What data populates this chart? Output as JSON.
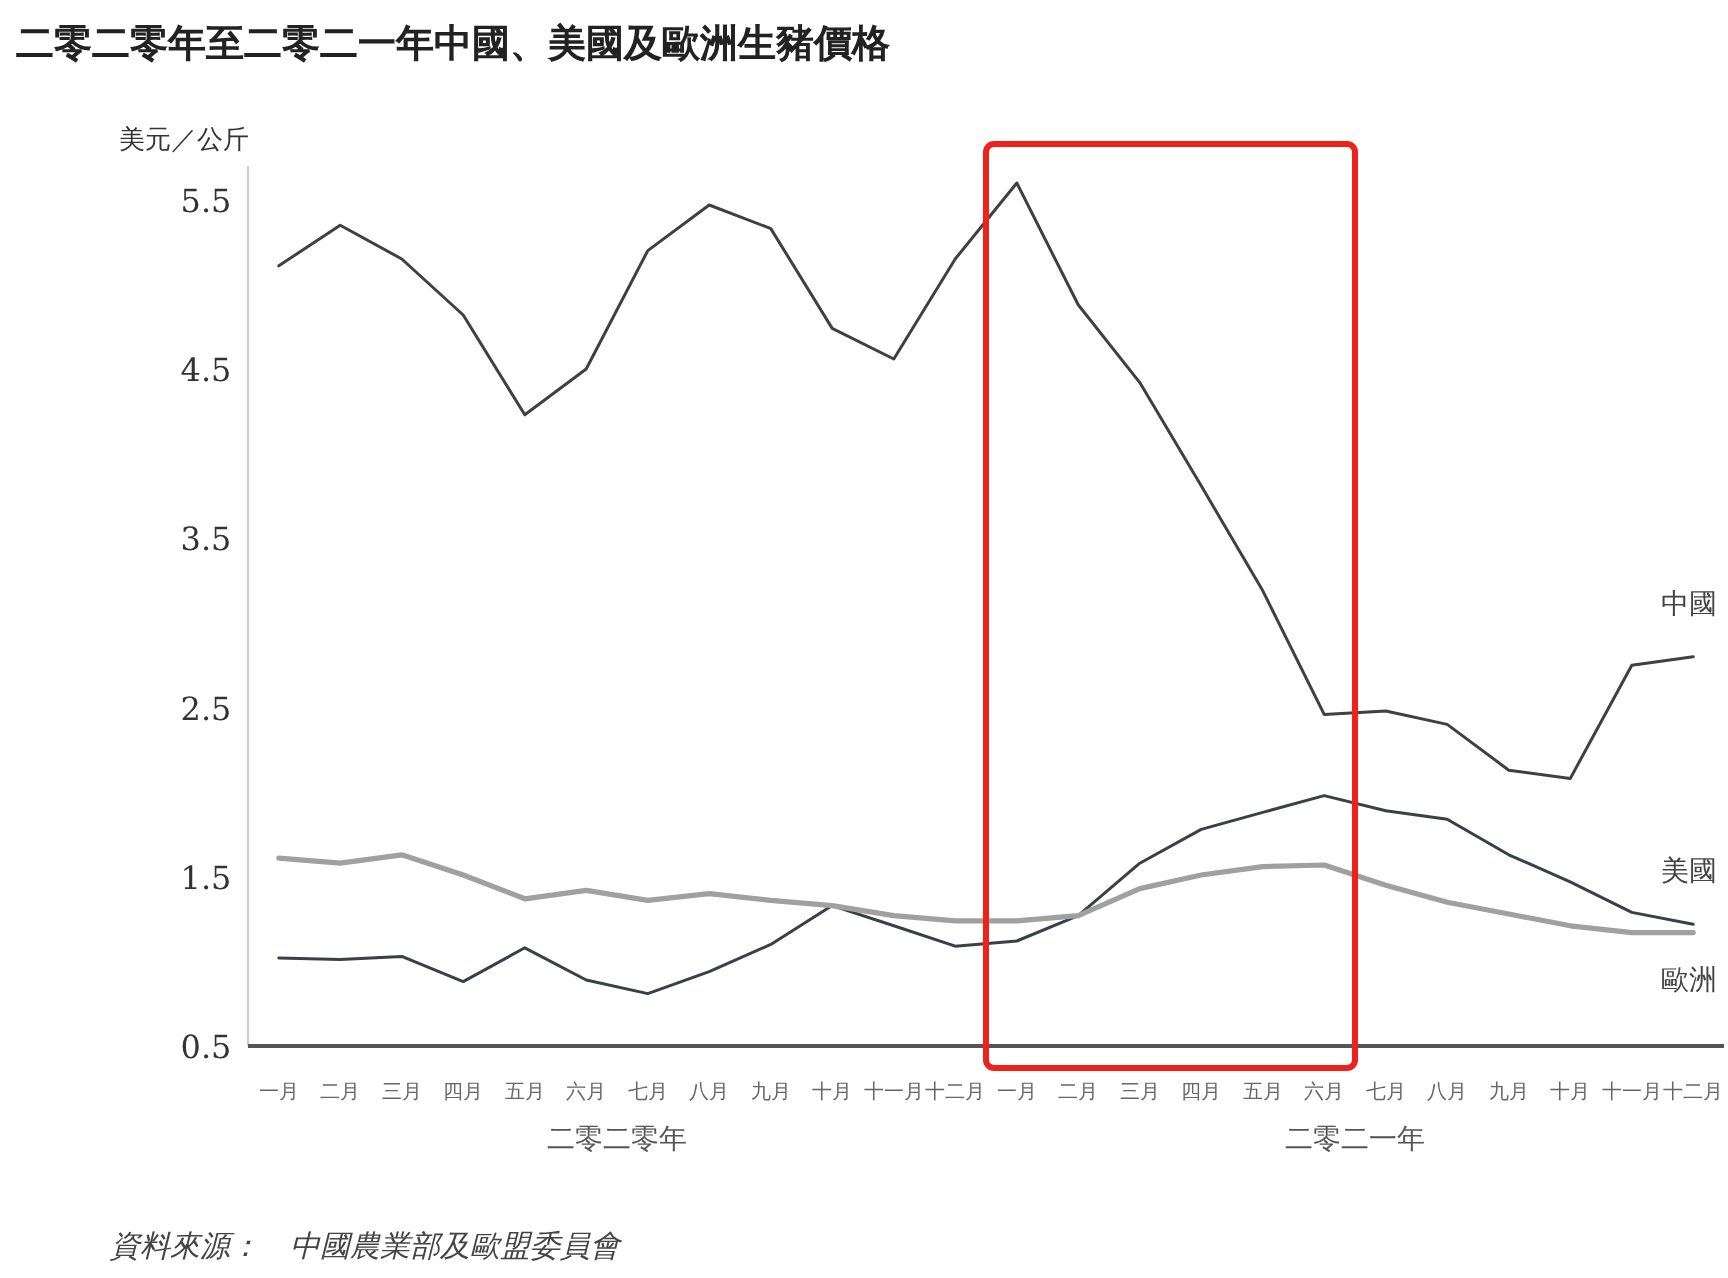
{
  "chart_data": {
    "type": "line",
    "title": "二零二零年至二零二一年中國、美國及歐洲生豬價格",
    "ylabel": "美元／公斤",
    "categories": [
      "一月",
      "二月",
      "三月",
      "四月",
      "五月",
      "六月",
      "七月",
      "八月",
      "九月",
      "十月",
      "十一月",
      "十二月",
      "一月",
      "二月",
      "三月",
      "四月",
      "五月",
      "六月",
      "七月",
      "八月",
      "九月",
      "十月",
      "十一月",
      "十二月"
    ],
    "series": [
      {
        "name": "中國",
        "color": "#404040",
        "values": [
          5.11,
          5.35,
          5.15,
          4.82,
          4.23,
          4.5,
          5.2,
          5.47,
          5.33,
          4.74,
          4.56,
          5.15,
          5.6,
          4.88,
          4.42,
          3.81,
          3.19,
          2.46,
          2.48,
          2.4,
          2.13,
          2.08,
          2.75,
          2.8
        ]
      },
      {
        "name": "美國",
        "color": "#3a3f48",
        "values": [
          1.02,
          1.01,
          1.03,
          0.88,
          1.08,
          0.89,
          0.81,
          0.94,
          1.1,
          1.33,
          1.21,
          1.09,
          1.12,
          1.27,
          1.58,
          1.78,
          1.88,
          1.98,
          1.89,
          1.84,
          1.63,
          1.47,
          1.29,
          1.22
        ]
      },
      {
        "name": "歐洲",
        "color": "#a0a0a0",
        "values": [
          1.61,
          1.58,
          1.63,
          1.51,
          1.37,
          1.42,
          1.36,
          1.4,
          1.36,
          1.33,
          1.27,
          1.24,
          1.24,
          1.27,
          1.43,
          1.51,
          1.56,
          1.57,
          1.45,
          1.35,
          1.28,
          1.21,
          1.17,
          1.17
        ]
      }
    ],
    "ylim": [
      0.5,
      5.7
    ],
    "yticks": [
      0.5,
      1.5,
      2.5,
      3.5,
      4.5,
      5.5
    ],
    "grid": false,
    "legend": false,
    "marker": "none",
    "line_style": "solid",
    "annotations": [
      "二零二零年",
      "二零二一年",
      "資料來源：　中國農業部及歐盟委員會"
    ]
  }
}
